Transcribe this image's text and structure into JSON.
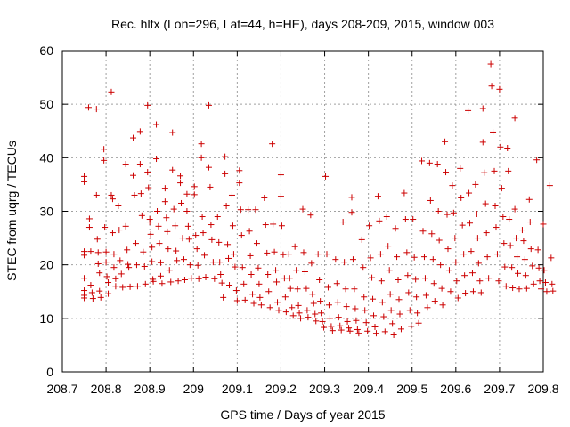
{
  "chart_data": {
    "type": "scatter",
    "title": "Rec. hlfx (Lon=296, Lat=44, h=HE), days 208-209, 2015, window 003",
    "xlabel": "GPS time / Days of year 2015",
    "ylabel": "STEC from uqrg / TECUs",
    "xlim": [
      208.7,
      209.8
    ],
    "ylim": [
      0,
      60
    ],
    "grid": true,
    "marker": "+",
    "color": "#cc0000",
    "x_ticks": [
      208.7,
      208.8,
      208.9,
      209.0,
      209.1,
      209.2,
      209.3,
      209.4,
      209.5,
      209.6,
      209.7,
      209.8
    ],
    "x_tick_labels": [
      "208.7",
      "208.8",
      "208.9",
      "209",
      "209.1",
      "209.2",
      "209.3",
      "209.4",
      "209.5",
      "209.6",
      "209.7",
      "209.8"
    ],
    "y_ticks": [
      0,
      10,
      20,
      30,
      40,
      50,
      60
    ],
    "y_tick_labels": [
      "0",
      "10",
      "20",
      "30",
      "40",
      "50",
      "60"
    ],
    "points": [
      [
        208.75,
        36.5
      ],
      [
        208.75,
        35.5
      ],
      [
        208.75,
        22.5
      ],
      [
        208.75,
        21.8
      ],
      [
        208.75,
        17.5
      ],
      [
        208.75,
        15.2
      ],
      [
        208.75,
        14.3
      ],
      [
        208.75,
        13.8
      ],
      [
        208.76,
        49.4
      ],
      [
        208.762,
        28.6
      ],
      [
        208.762,
        27.0
      ],
      [
        208.765,
        22.5
      ],
      [
        208.765,
        16.2
      ],
      [
        208.768,
        14.8
      ],
      [
        208.77,
        13.7
      ],
      [
        208.778,
        49.1
      ],
      [
        208.778,
        33.0
      ],
      [
        208.78,
        24.8
      ],
      [
        208.782,
        22.3
      ],
      [
        208.782,
        20.2
      ],
      [
        208.785,
        18.5
      ],
      [
        208.785,
        15.1
      ],
      [
        208.788,
        13.9
      ],
      [
        208.795,
        41.6
      ],
      [
        208.795,
        39.5
      ],
      [
        208.797,
        27.0
      ],
      [
        208.8,
        22.4
      ],
      [
        208.8,
        20.5
      ],
      [
        208.802,
        17.8
      ],
      [
        208.805,
        16.7
      ],
      [
        208.805,
        14.6
      ],
      [
        208.812,
        52.3
      ],
      [
        208.812,
        33.0
      ],
      [
        208.815,
        32.3
      ],
      [
        208.815,
        26.0
      ],
      [
        208.818,
        22.0
      ],
      [
        208.818,
        19.5
      ],
      [
        208.822,
        17.4
      ],
      [
        208.822,
        16.0
      ],
      [
        208.828,
        31.0
      ],
      [
        208.83,
        26.5
      ],
      [
        208.832,
        20.8
      ],
      [
        208.835,
        18.3
      ],
      [
        208.838,
        15.8
      ],
      [
        208.845,
        38.8
      ],
      [
        208.845,
        27.2
      ],
      [
        208.848,
        22.8
      ],
      [
        208.85,
        20.1
      ],
      [
        208.852,
        19.5
      ],
      [
        208.855,
        15.9
      ],
      [
        208.862,
        43.7
      ],
      [
        208.862,
        36.7
      ],
      [
        208.865,
        33.0
      ],
      [
        208.868,
        24.0
      ],
      [
        208.87,
        20.0
      ],
      [
        208.872,
        16.0
      ],
      [
        208.878,
        44.9
      ],
      [
        208.878,
        38.8
      ],
      [
        208.88,
        33.3
      ],
      [
        208.882,
        29.2
      ],
      [
        208.885,
        22.4
      ],
      [
        208.888,
        19.7
      ],
      [
        208.89,
        16.4
      ],
      [
        208.895,
        49.8
      ],
      [
        208.895,
        37.3
      ],
      [
        208.897,
        34.4
      ],
      [
        208.9,
        28.5
      ],
      [
        208.9,
        28.0
      ],
      [
        208.902,
        25.7
      ],
      [
        208.905,
        23.3
      ],
      [
        208.905,
        20.6
      ],
      [
        208.907,
        17.3
      ],
      [
        208.908,
        16.9
      ],
      [
        208.915,
        46.2
      ],
      [
        208.915,
        39.8
      ],
      [
        208.917,
        30.0
      ],
      [
        208.92,
        27.2
      ],
      [
        208.922,
        24.0
      ],
      [
        208.925,
        20.4
      ],
      [
        208.925,
        17.9
      ],
      [
        208.928,
        16.5
      ],
      [
        208.935,
        34.3
      ],
      [
        208.935,
        31.8
      ],
      [
        208.938,
        28.8
      ],
      [
        208.94,
        26.2
      ],
      [
        208.942,
        23.0
      ],
      [
        208.945,
        19.0
      ],
      [
        208.948,
        16.8
      ],
      [
        208.952,
        44.7
      ],
      [
        208.952,
        37.7
      ],
      [
        208.955,
        30.4
      ],
      [
        208.958,
        27.3
      ],
      [
        208.96,
        22.6
      ],
      [
        208.962,
        20.8
      ],
      [
        208.965,
        17.0
      ],
      [
        208.97,
        36.6
      ],
      [
        208.97,
        35.3
      ],
      [
        208.972,
        31.5
      ],
      [
        208.975,
        25.0
      ],
      [
        208.978,
        21.0
      ],
      [
        208.98,
        17.2
      ],
      [
        208.985,
        33.2
      ],
      [
        208.985,
        30.0
      ],
      [
        208.988,
        27.2
      ],
      [
        208.99,
        24.8
      ],
      [
        208.992,
        20.0
      ],
      [
        208.995,
        17.5
      ],
      [
        209.002,
        34.6
      ],
      [
        209.002,
        33.1
      ],
      [
        209.005,
        25.5
      ],
      [
        209.008,
        23.0
      ],
      [
        209.01,
        19.9
      ],
      [
        209.012,
        17.4
      ],
      [
        209.018,
        42.6
      ],
      [
        209.018,
        40.0
      ],
      [
        209.02,
        29.0
      ],
      [
        209.022,
        26.0
      ],
      [
        209.025,
        21.8
      ],
      [
        209.028,
        17.7
      ],
      [
        209.035,
        49.8
      ],
      [
        209.035,
        38.2
      ],
      [
        209.038,
        34.5
      ],
      [
        209.04,
        27.5
      ],
      [
        209.042,
        24.7
      ],
      [
        209.045,
        20.5
      ],
      [
        209.048,
        17.4
      ],
      [
        209.055,
        29.0
      ],
      [
        209.058,
        24.2
      ],
      [
        209.06,
        20.5
      ],
      [
        209.062,
        18.2
      ],
      [
        209.065,
        16.6
      ],
      [
        209.068,
        13.9
      ],
      [
        209.072,
        40.2
      ],
      [
        209.072,
        37.0
      ],
      [
        209.075,
        31.0
      ],
      [
        209.078,
        23.8
      ],
      [
        209.08,
        21.2
      ],
      [
        209.082,
        16.2
      ],
      [
        209.088,
        33.0
      ],
      [
        209.09,
        27.3
      ],
      [
        209.092,
        22.0
      ],
      [
        209.095,
        19.6
      ],
      [
        209.098,
        15.2
      ],
      [
        209.1,
        13.3
      ],
      [
        209.105,
        37.6
      ],
      [
        209.105,
        35.3
      ],
      [
        209.108,
        30.3
      ],
      [
        209.11,
        25.5
      ],
      [
        209.112,
        19.5
      ],
      [
        209.115,
        16.4
      ],
      [
        209.118,
        13.4
      ],
      [
        209.125,
        30.3
      ],
      [
        209.128,
        26.3
      ],
      [
        209.13,
        21.7
      ],
      [
        209.132,
        18.2
      ],
      [
        209.135,
        14.5
      ],
      [
        209.138,
        12.8
      ],
      [
        209.142,
        30.3
      ],
      [
        209.145,
        24.0
      ],
      [
        209.148,
        19.4
      ],
      [
        209.15,
        16.4
      ],
      [
        209.152,
        13.9
      ],
      [
        209.155,
        12.5
      ],
      [
        209.162,
        32.5
      ],
      [
        209.165,
        27.5
      ],
      [
        209.168,
        22.2
      ],
      [
        209.17,
        18.2
      ],
      [
        209.172,
        15.0
      ],
      [
        209.175,
        12.0
      ],
      [
        209.18,
        42.6
      ],
      [
        209.182,
        27.6
      ],
      [
        209.185,
        22.4
      ],
      [
        209.188,
        19.0
      ],
      [
        209.19,
        16.8
      ],
      [
        209.192,
        13.0
      ],
      [
        209.195,
        11.5
      ],
      [
        209.2,
        36.8
      ],
      [
        209.2,
        32.8
      ],
      [
        209.202,
        27.3
      ],
      [
        209.205,
        21.9
      ],
      [
        209.208,
        17.5
      ],
      [
        209.21,
        14.0
      ],
      [
        209.212,
        11.2
      ],
      [
        209.218,
        22.0
      ],
      [
        209.22,
        17.5
      ],
      [
        209.222,
        15.6
      ],
      [
        209.225,
        12.0
      ],
      [
        209.228,
        10.5
      ],
      [
        209.232,
        23.4
      ],
      [
        209.235,
        19.0
      ],
      [
        209.238,
        15.5
      ],
      [
        209.24,
        12.4
      ],
      [
        209.242,
        11.0
      ],
      [
        209.245,
        10.0
      ],
      [
        209.25,
        30.4
      ],
      [
        209.252,
        22.3
      ],
      [
        209.255,
        18.7
      ],
      [
        209.258,
        15.6
      ],
      [
        209.26,
        11.5
      ],
      [
        209.262,
        10.2
      ],
      [
        209.268,
        29.3
      ],
      [
        209.27,
        20.3
      ],
      [
        209.272,
        14.5
      ],
      [
        209.275,
        12.8
      ],
      [
        209.278,
        10.8
      ],
      [
        209.28,
        9.5
      ],
      [
        209.285,
        22.0
      ],
      [
        209.288,
        17.2
      ],
      [
        209.29,
        13.2
      ],
      [
        209.292,
        11.0
      ],
      [
        209.295,
        9.4
      ],
      [
        209.298,
        8.3
      ],
      [
        209.302,
        36.5
      ],
      [
        209.305,
        22.0
      ],
      [
        209.308,
        15.8
      ],
      [
        209.31,
        12.5
      ],
      [
        209.312,
        10.0
      ],
      [
        209.315,
        8.5
      ],
      [
        209.318,
        7.7
      ],
      [
        209.325,
        21.0
      ],
      [
        209.328,
        16.5
      ],
      [
        209.33,
        13.0
      ],
      [
        209.332,
        10.2
      ],
      [
        209.335,
        8.6
      ],
      [
        209.338,
        7.8
      ],
      [
        209.342,
        28.0
      ],
      [
        209.345,
        20.5
      ],
      [
        209.348,
        15.5
      ],
      [
        209.35,
        12.2
      ],
      [
        209.352,
        9.4
      ],
      [
        209.355,
        8.2
      ],
      [
        209.358,
        7.6
      ],
      [
        209.362,
        32.6
      ],
      [
        209.362,
        29.8
      ],
      [
        209.365,
        21.0
      ],
      [
        209.368,
        15.5
      ],
      [
        209.37,
        11.8
      ],
      [
        209.372,
        9.6
      ],
      [
        209.375,
        7.9
      ],
      [
        209.378,
        7.2
      ],
      [
        209.385,
        24.7
      ],
      [
        209.388,
        19.5
      ],
      [
        209.39,
        14.0
      ],
      [
        209.392,
        11.5
      ],
      [
        209.395,
        9.2
      ],
      [
        209.398,
        7.6
      ],
      [
        209.402,
        27.3
      ],
      [
        209.405,
        21.3
      ],
      [
        209.408,
        17.6
      ],
      [
        209.41,
        13.6
      ],
      [
        209.412,
        10.5
      ],
      [
        209.415,
        8.4
      ],
      [
        209.418,
        7.2
      ],
      [
        209.422,
        32.8
      ],
      [
        209.425,
        28.2
      ],
      [
        209.428,
        22.0
      ],
      [
        209.43,
        17.0
      ],
      [
        209.432,
        13.0
      ],
      [
        209.435,
        10.3
      ],
      [
        209.438,
        7.5
      ],
      [
        209.442,
        29.0
      ],
      [
        209.445,
        23.5
      ],
      [
        209.448,
        19.0
      ],
      [
        209.45,
        14.5
      ],
      [
        209.452,
        11.5
      ],
      [
        209.455,
        9.0
      ],
      [
        209.458,
        6.9
      ],
      [
        209.462,
        26.8
      ],
      [
        209.465,
        21.5
      ],
      [
        209.468,
        17.2
      ],
      [
        209.47,
        13.5
      ],
      [
        209.472,
        10.8
      ],
      [
        209.475,
        8.0
      ],
      [
        209.482,
        33.4
      ],
      [
        209.485,
        28.5
      ],
      [
        209.488,
        22.3
      ],
      [
        209.49,
        18.0
      ],
      [
        209.492,
        14.8
      ],
      [
        209.495,
        11.5
      ],
      [
        209.498,
        8.5
      ],
      [
        209.502,
        28.5
      ],
      [
        209.505,
        21.4
      ],
      [
        209.508,
        17.3
      ],
      [
        209.51,
        14.0
      ],
      [
        209.512,
        11.0
      ],
      [
        209.515,
        9.1
      ],
      [
        209.522,
        39.4
      ],
      [
        209.525,
        26.3
      ],
      [
        209.528,
        21.5
      ],
      [
        209.53,
        17.5
      ],
      [
        209.532,
        14.3
      ],
      [
        209.535,
        12.0
      ],
      [
        209.54,
        39.0
      ],
      [
        209.542,
        32.0
      ],
      [
        209.545,
        25.8
      ],
      [
        209.548,
        21.0
      ],
      [
        209.55,
        16.5
      ],
      [
        209.552,
        13.2
      ],
      [
        209.558,
        38.8
      ],
      [
        209.56,
        30.0
      ],
      [
        209.562,
        24.6
      ],
      [
        209.565,
        20.0
      ],
      [
        209.568,
        15.6
      ],
      [
        209.57,
        12.5
      ],
      [
        209.575,
        43.0
      ],
      [
        209.577,
        37.3
      ],
      [
        209.58,
        29.4
      ],
      [
        209.582,
        23.0
      ],
      [
        209.585,
        19.0
      ],
      [
        209.588,
        15.0
      ],
      [
        209.592,
        34.8
      ],
      [
        209.595,
        29.7
      ],
      [
        209.598,
        25.0
      ],
      [
        209.6,
        20.5
      ],
      [
        209.602,
        17.0
      ],
      [
        209.605,
        13.8
      ],
      [
        209.61,
        38.0
      ],
      [
        209.612,
        32.5
      ],
      [
        209.615,
        27.4
      ],
      [
        209.618,
        22.0
      ],
      [
        209.62,
        18.0
      ],
      [
        209.622,
        14.7
      ],
      [
        209.628,
        48.8
      ],
      [
        209.63,
        33.4
      ],
      [
        209.632,
        27.8
      ],
      [
        209.635,
        22.5
      ],
      [
        209.638,
        18.5
      ],
      [
        209.64,
        15.0
      ],
      [
        209.645,
        35.0
      ],
      [
        209.648,
        29.5
      ],
      [
        209.65,
        25.0
      ],
      [
        209.652,
        20.3
      ],
      [
        209.655,
        17.0
      ],
      [
        209.658,
        14.8
      ],
      [
        209.662,
        49.2
      ],
      [
        209.662,
        42.9
      ],
      [
        209.665,
        37.2
      ],
      [
        209.668,
        31.4
      ],
      [
        209.67,
        26.0
      ],
      [
        209.672,
        21.5
      ],
      [
        209.675,
        17.5
      ],
      [
        209.68,
        57.5
      ],
      [
        209.682,
        53.4
      ],
      [
        209.685,
        44.8
      ],
      [
        209.688,
        37.5
      ],
      [
        209.69,
        31.0
      ],
      [
        209.692,
        27.0
      ],
      [
        209.695,
        22.0
      ],
      [
        209.698,
        17.0
      ],
      [
        209.7,
        52.8
      ],
      [
        209.702,
        42.0
      ],
      [
        209.705,
        34.3
      ],
      [
        209.708,
        29.0
      ],
      [
        209.71,
        24.0
      ],
      [
        209.712,
        19.6
      ],
      [
        209.715,
        16.0
      ],
      [
        209.718,
        41.8
      ],
      [
        209.72,
        37.5
      ],
      [
        209.722,
        28.5
      ],
      [
        209.725,
        23.6
      ],
      [
        209.728,
        19.5
      ],
      [
        209.73,
        15.7
      ],
      [
        209.735,
        47.4
      ],
      [
        209.735,
        30.4
      ],
      [
        209.738,
        25.0
      ],
      [
        209.74,
        21.5
      ],
      [
        209.742,
        18.4
      ],
      [
        209.745,
        15.5
      ],
      [
        209.752,
        26.5
      ],
      [
        209.755,
        24.5
      ],
      [
        209.758,
        21.0
      ],
      [
        209.76,
        18.0
      ],
      [
        209.762,
        15.6
      ],
      [
        209.768,
        32.2
      ],
      [
        209.77,
        28.0
      ],
      [
        209.772,
        23.0
      ],
      [
        209.775,
        19.8
      ],
      [
        209.778,
        16.4
      ],
      [
        209.785,
        39.6
      ],
      [
        209.788,
        22.8
      ],
      [
        209.79,
        19.4
      ],
      [
        209.792,
        17.0
      ],
      [
        209.795,
        15.5
      ],
      [
        209.8,
        27.6
      ],
      [
        209.802,
        19.0
      ],
      [
        209.805,
        16.7
      ],
      [
        209.808,
        15.0
      ],
      [
        209.815,
        34.8
      ],
      [
        209.818,
        21.3
      ],
      [
        209.82,
        16.4
      ],
      [
        209.822,
        15.1
      ]
    ]
  }
}
